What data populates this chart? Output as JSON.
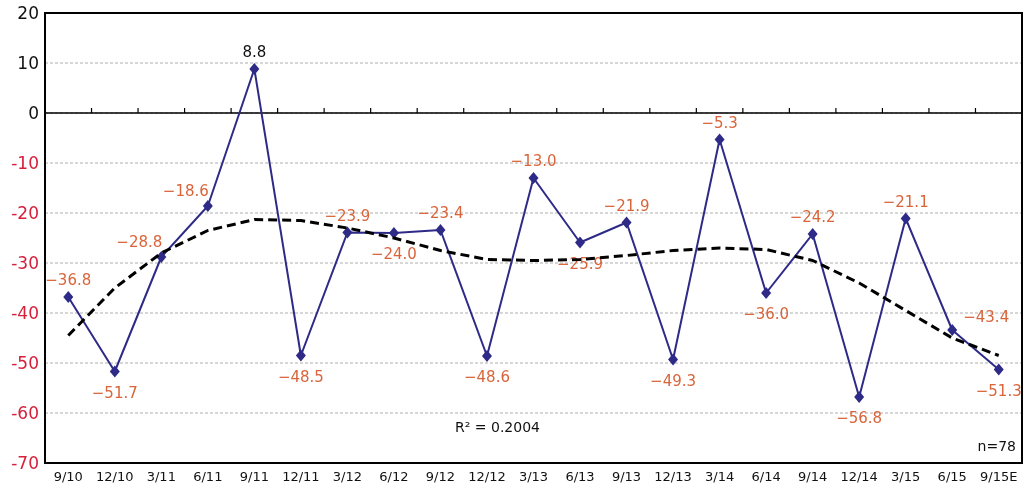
{
  "chart_data": {
    "type": "line",
    "categories": [
      "9/10",
      "12/10",
      "3/11",
      "6/11",
      "9/11",
      "12/11",
      "3/12",
      "6/12",
      "9/12",
      "12/12",
      "3/13",
      "6/13",
      "9/13",
      "12/13",
      "3/14",
      "6/14",
      "9/14",
      "12/14",
      "3/15",
      "6/15",
      "9/15E"
    ],
    "series": [
      {
        "color": "#2e2a87",
        "marker": "diamond",
        "line_style": "solid",
        "values": [
          -36.8,
          -51.7,
          -28.8,
          -18.6,
          8.8,
          -48.5,
          -23.9,
          -24.0,
          -23.4,
          -48.6,
          -13.0,
          -25.9,
          -21.9,
          -49.3,
          -5.3,
          -36.0,
          -24.2,
          -56.8,
          -21.1,
          -43.4,
          -51.3
        ],
        "value_labels": [
          "−36.8",
          "−51.7",
          "−28.8",
          "−18.6",
          "8.8",
          "−48.5",
          "−23.9",
          "−24.0",
          "−23.4",
          "−48.6",
          "−13.0",
          "−25.9",
          "−21.9",
          "−49.3",
          "−5.3",
          "−36.0",
          "−24.2",
          "−56.8",
          "−21.1",
          "−43.4",
          "−51.3"
        ]
      },
      {
        "color": "#000000",
        "marker": "none",
        "line_style": "dashed",
        "values": [
          -44.5,
          -35,
          -28,
          -23.5,
          -21.3,
          -21.5,
          -23,
          -25,
          -27.5,
          -29.3,
          -29.5,
          -29.3,
          -28.5,
          -27.5,
          -27,
          -27.3,
          -29.5,
          -34,
          -39.5,
          -45,
          -48.5
        ]
      }
    ],
    "ylim": [
      -70,
      20
    ],
    "yticks": [
      -70,
      -60,
      -50,
      -40,
      -30,
      -20,
      -10,
      0,
      10,
      20
    ],
    "grid": "y",
    "annotations": [
      "R² = 0.2004",
      "n=78"
    ]
  }
}
